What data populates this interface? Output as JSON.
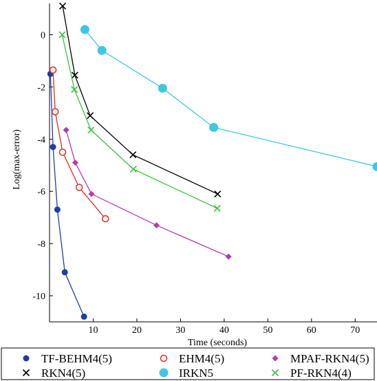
{
  "chart_data": {
    "type": "line",
    "title": "",
    "xlabel": "Time (seconds)",
    "ylabel": "Log(max-error)",
    "xlim": [
      0,
      75
    ],
    "ylim": [
      -11,
      1.2
    ],
    "xticks": [
      10,
      20,
      30,
      40,
      50,
      60,
      70
    ],
    "yticks": [
      0,
      -2,
      -4,
      -6,
      -8,
      -10
    ],
    "xtick_labels": [
      "10",
      "20",
      "30",
      "40",
      "50",
      "60",
      "70"
    ],
    "ytick_labels": [
      "0",
      "-2",
      "-4",
      "-6",
      "-8",
      "-10"
    ],
    "grid": false,
    "legend_position": "bottom",
    "series": [
      {
        "name": "TF-BEHM4(5)",
        "marker": "filled-circle",
        "color": "#1f3da8",
        "x": [
          0.2,
          0.8,
          1.8,
          3.5,
          7.9
        ],
        "y": [
          -1.5,
          -4.3,
          -6.7,
          -9.1,
          -10.8
        ]
      },
      {
        "name": "EHM4(5)",
        "marker": "open-circle",
        "color": "#e8291d",
        "x": [
          0.8,
          1.3,
          3.0,
          6.8,
          12.8
        ],
        "y": [
          -1.35,
          -2.95,
          -4.5,
          -5.85,
          -7.05
        ]
      },
      {
        "name": "MPAF-RKN4(5)",
        "marker": "diamond",
        "color": "#b43ab4",
        "x": [
          3.8,
          5.9,
          9.6,
          24.5,
          41.0
        ],
        "y": [
          -3.65,
          -4.9,
          -6.1,
          -7.3,
          -8.5
        ]
      },
      {
        "name": "RKN4(5)",
        "marker": "x",
        "color": "#000000",
        "x": [
          3.0,
          5.8,
          9.3,
          19.1,
          38.5
        ],
        "y": [
          1.1,
          -1.55,
          -3.1,
          -4.6,
          -6.1
        ]
      },
      {
        "name": "IRKN5",
        "marker": "big-circle",
        "color": "#3ec8e0",
        "x": [
          8.1,
          12.0,
          25.9,
          37.6,
          75.0
        ],
        "y": [
          0.2,
          -0.6,
          -2.05,
          -3.55,
          -5.05
        ]
      },
      {
        "name": "PF-RKN4(4)",
        "marker": "x",
        "color": "#3bbf3b",
        "x": [
          2.9,
          5.7,
          9.5,
          19.2,
          38.4
        ],
        "y": [
          0.0,
          -2.1,
          -3.65,
          -5.15,
          -6.65
        ]
      }
    ]
  }
}
